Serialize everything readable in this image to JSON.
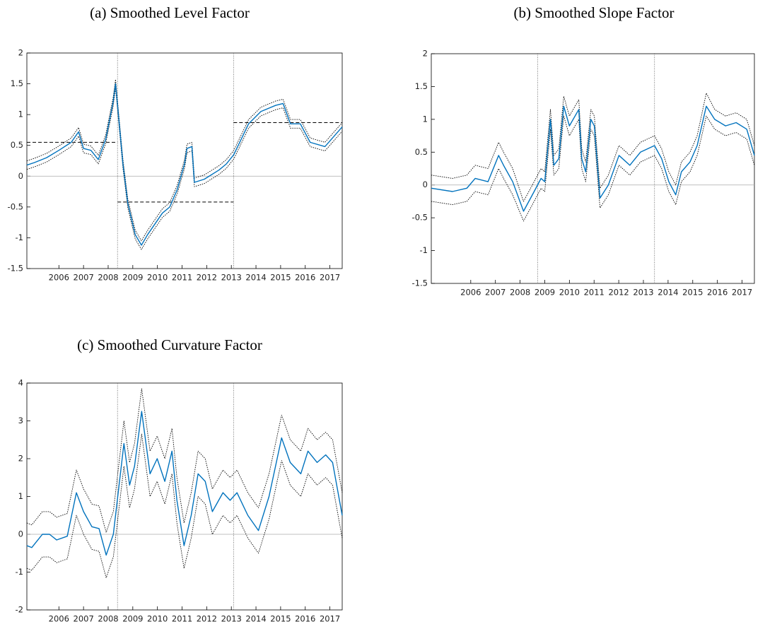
{
  "chart_data": [
    {
      "type": "line",
      "title": "(a) Smoothed Level Factor",
      "xlim": [
        2004.7,
        2017.5
      ],
      "xticks": [
        2006,
        2007,
        2008,
        2009,
        2010,
        2011,
        2012,
        2013,
        2014,
        2015,
        2016,
        2017
      ],
      "ylim": [
        -1.5,
        2
      ],
      "yticks": [
        -1.5,
        -1,
        -0.5,
        0,
        0.5,
        1,
        1.5,
        2
      ],
      "reference_line": 0,
      "vlines": [
        2008.38,
        2013.09
      ],
      "regime_means": [
        {
          "from": 2004.7,
          "to": 2008.38,
          "value": 0.55
        },
        {
          "from": 2008.38,
          "to": 2013.09,
          "value": -0.42
        },
        {
          "from": 2013.09,
          "to": 2017.5,
          "value": 0.87
        }
      ],
      "x": [
        2004.7,
        2005.0,
        2005.5,
        2006.0,
        2006.5,
        2006.8,
        2007.0,
        2007.3,
        2007.6,
        2007.9,
        2008.2,
        2008.3,
        2008.6,
        2008.8,
        2009.1,
        2009.35,
        2009.6,
        2010.2,
        2010.5,
        2010.8,
        2011.1,
        2011.2,
        2011.4,
        2011.5,
        2011.9,
        2012.5,
        2012.8,
        2013.1,
        2013.7,
        2014.2,
        2014.8,
        2015.1,
        2015.4,
        2015.8,
        2016.2,
        2016.8,
        2017.5
      ],
      "series": [
        {
          "color": "#0072bd",
          "style": "solid",
          "values": [
            0.18,
            0.22,
            0.3,
            0.42,
            0.55,
            0.72,
            0.45,
            0.42,
            0.27,
            0.6,
            1.2,
            1.5,
            0.2,
            -0.45,
            -0.95,
            -1.12,
            -0.95,
            -0.6,
            -0.5,
            -0.22,
            0.2,
            0.45,
            0.48,
            -0.1,
            -0.05,
            0.1,
            0.2,
            0.35,
            0.85,
            1.05,
            1.15,
            1.18,
            0.85,
            0.85,
            0.55,
            0.48,
            0.8
          ]
        },
        {
          "color": "#000000",
          "style": "dotted",
          "values": [
            0.25,
            0.29,
            0.37,
            0.49,
            0.62,
            0.79,
            0.52,
            0.49,
            0.34,
            0.67,
            1.27,
            1.57,
            0.27,
            -0.38,
            -0.88,
            -1.05,
            -0.88,
            -0.53,
            -0.43,
            -0.15,
            0.27,
            0.52,
            0.55,
            -0.03,
            0.02,
            0.17,
            0.27,
            0.42,
            0.92,
            1.12,
            1.22,
            1.25,
            0.92,
            0.92,
            0.62,
            0.55,
            0.87
          ]
        },
        {
          "color": "#000000",
          "style": "dotted",
          "values": [
            0.11,
            0.15,
            0.23,
            0.35,
            0.48,
            0.65,
            0.38,
            0.35,
            0.2,
            0.53,
            1.13,
            1.43,
            0.13,
            -0.52,
            -1.02,
            -1.19,
            -1.02,
            -0.67,
            -0.57,
            -0.29,
            0.13,
            0.38,
            0.41,
            -0.17,
            -0.12,
            0.03,
            0.13,
            0.28,
            0.78,
            0.98,
            1.08,
            1.11,
            0.78,
            0.78,
            0.48,
            0.41,
            0.73
          ]
        }
      ]
    },
    {
      "type": "line",
      "title": "(b) Smoothed Slope Factor",
      "xlim": [
        2004.4,
        2017.5
      ],
      "xticks": [
        2006,
        2007,
        2008,
        2009,
        2010,
        2011,
        2012,
        2013,
        2014,
        2015,
        2016,
        2017
      ],
      "ylim": [
        -1.5,
        2
      ],
      "yticks": [
        -1.5,
        -1,
        -0.5,
        0,
        0.5,
        1,
        1.5,
        2
      ],
      "reference_line": 0,
      "vlines": [
        2008.71,
        2013.45
      ],
      "x": [
        2004.4,
        2005.26,
        2005.84,
        2006.18,
        2006.7,
        2007.13,
        2007.33,
        2007.7,
        2008.14,
        2008.57,
        2008.85,
        2009.0,
        2009.23,
        2009.37,
        2009.57,
        2009.77,
        2010.0,
        2010.38,
        2010.5,
        2010.66,
        2010.87,
        2011.01,
        2011.24,
        2011.58,
        2012.01,
        2012.45,
        2012.88,
        2013.45,
        2013.74,
        2014.03,
        2014.31,
        2014.54,
        2014.89,
        2015.18,
        2015.55,
        2015.89,
        2016.33,
        2016.76,
        2017.19,
        2017.5
      ],
      "series": [
        {
          "color": "#0072bd",
          "style": "solid",
          "values": [
            -0.05,
            -0.1,
            -0.05,
            0.1,
            0.05,
            0.45,
            0.3,
            0.05,
            -0.4,
            -0.1,
            0.1,
            0.05,
            1.0,
            0.3,
            0.4,
            1.2,
            0.9,
            1.15,
            0.4,
            0.2,
            1.0,
            0.9,
            -0.2,
            0,
            0.45,
            0.3,
            0.5,
            0.6,
            0.4,
            0.05,
            -0.15,
            0.2,
            0.35,
            0.6,
            1.2,
            1.0,
            0.9,
            0.95,
            0.85,
            0.45
          ]
        },
        {
          "color": "#000000",
          "style": "dotted",
          "values": [
            0.15,
            0.1,
            0.15,
            0.3,
            0.25,
            0.65,
            0.5,
            0.25,
            -0.25,
            0.05,
            0.25,
            0.2,
            1.15,
            0.45,
            0.55,
            1.35,
            1.05,
            1.3,
            0.55,
            0.35,
            1.15,
            1.05,
            -0.05,
            0.15,
            0.6,
            0.45,
            0.65,
            0.75,
            0.55,
            0.2,
            0,
            0.35,
            0.5,
            0.75,
            1.4,
            1.15,
            1.05,
            1.1,
            1.0,
            0.6
          ]
        },
        {
          "color": "#000000",
          "style": "dotted",
          "values": [
            -0.25,
            -0.3,
            -0.25,
            -0.1,
            -0.15,
            0.25,
            0.1,
            -0.15,
            -0.55,
            -0.25,
            -0.05,
            -0.1,
            0.85,
            0.15,
            0.25,
            1.05,
            0.75,
            1.0,
            0.25,
            0.05,
            0.85,
            0.75,
            -0.35,
            -0.15,
            0.3,
            0.15,
            0.35,
            0.45,
            0.25,
            -0.1,
            -0.3,
            0.05,
            0.2,
            0.45,
            1.05,
            0.85,
            0.75,
            0.8,
            0.7,
            0.3
          ]
        }
      ]
    },
    {
      "type": "line",
      "title": "(c) Smoothed Curvature Factor",
      "xlim": [
        2004.7,
        2017.5
      ],
      "xticks": [
        2006,
        2007,
        2008,
        2009,
        2010,
        2011,
        2012,
        2013,
        2014,
        2015,
        2016,
        2017
      ],
      "ylim": [
        -2,
        4
      ],
      "yticks": [
        -2,
        -1,
        0,
        1,
        2,
        3,
        4
      ],
      "reference_line": 0,
      "vlines": [
        2008.38,
        2013.09
      ],
      "x": [
        2004.7,
        2004.9,
        2005.33,
        2005.62,
        2005.91,
        2006.34,
        2006.71,
        2007.0,
        2007.34,
        2007.63,
        2007.92,
        2008.21,
        2008.64,
        2008.87,
        2009.07,
        2009.36,
        2009.7,
        2009.99,
        2010.3,
        2010.59,
        2010.79,
        2011.08,
        2011.37,
        2011.65,
        2011.94,
        2012.23,
        2012.66,
        2012.95,
        2013.23,
        2013.67,
        2014.1,
        2014.53,
        2015.04,
        2015.39,
        2015.82,
        2016.11,
        2016.48,
        2016.83,
        2017.11,
        2017.5
      ],
      "series": [
        {
          "color": "#0072bd",
          "style": "solid",
          "values": [
            -0.3,
            -0.35,
            0,
            0,
            -0.15,
            -0.05,
            1.1,
            0.6,
            0.2,
            0.15,
            -0.55,
            0,
            2.4,
            1.3,
            1.8,
            3.25,
            1.6,
            2.0,
            1.4,
            2.2,
            0.9,
            -0.3,
            0.5,
            1.6,
            1.4,
            0.6,
            1.1,
            0.9,
            1.1,
            0.5,
            0.1,
            1.0,
            2.55,
            1.9,
            1.6,
            2.2,
            1.9,
            2.1,
            1.9,
            0.5
          ]
        },
        {
          "color": "#000000",
          "style": "dotted",
          "values": [
            0.3,
            0.25,
            0.6,
            0.6,
            0.45,
            0.55,
            1.7,
            1.2,
            0.8,
            0.75,
            0.05,
            0.6,
            3.0,
            1.9,
            2.4,
            3.85,
            2.2,
            2.6,
            2.0,
            2.8,
            1.5,
            0.3,
            1.1,
            2.2,
            2.0,
            1.2,
            1.7,
            1.5,
            1.7,
            1.1,
            0.7,
            1.6,
            3.15,
            2.5,
            2.2,
            2.8,
            2.5,
            2.7,
            2.5,
            1.1
          ]
        },
        {
          "color": "#000000",
          "style": "dotted",
          "values": [
            -0.9,
            -0.95,
            -0.6,
            -0.6,
            -0.75,
            -0.65,
            0.5,
            0,
            -0.4,
            -0.45,
            -1.15,
            -0.6,
            1.8,
            0.7,
            1.2,
            2.65,
            1.0,
            1.4,
            0.8,
            1.6,
            0.3,
            -0.9,
            -0.1,
            1.0,
            0.8,
            0,
            0.5,
            0.3,
            0.5,
            -0.1,
            -0.5,
            0.4,
            1.95,
            1.3,
            1.0,
            1.6,
            1.3,
            1.5,
            1.3,
            -0.1
          ]
        }
      ]
    }
  ]
}
